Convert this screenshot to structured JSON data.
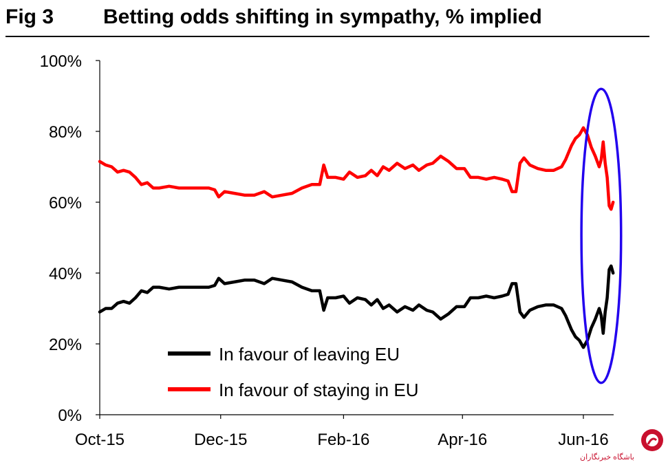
{
  "header": {
    "fig_label": "Fig 3",
    "title": "Betting odds shifting in sympathy, % implied"
  },
  "watermark": {
    "text": "باشگاه خبرنگاران",
    "logo_icon": "news-agency-logo-icon",
    "color": "#c8102e"
  },
  "chart_data": {
    "type": "line",
    "title": "Betting odds shifting in sympathy, % implied",
    "xlabel": "",
    "ylabel": "",
    "x_ticks": [
      "Oct-15",
      "Dec-15",
      "Feb-16",
      "Apr-16",
      "Jun-16"
    ],
    "x_tick_dates": [
      "2015-10-01",
      "2015-12-01",
      "2016-02-01",
      "2016-04-01",
      "2016-06-01"
    ],
    "xlim": [
      "2015-10-01",
      "2016-06-16"
    ],
    "ylim": [
      0,
      100
    ],
    "y_ticks": [
      "0%",
      "20%",
      "40%",
      "60%",
      "80%",
      "100%"
    ],
    "grid": false,
    "legend": "bottom-left",
    "annotation": {
      "shape": "ellipse",
      "color": "#2200ee",
      "x_range": [
        "2016-05-31",
        "2016-06-20"
      ],
      "y_range": [
        9,
        92
      ]
    },
    "series": [
      {
        "name": "In favour of leaving EU",
        "color": "#000000",
        "points": [
          [
            "2015-10-01",
            29
          ],
          [
            "2015-10-04",
            30
          ],
          [
            "2015-10-07",
            30
          ],
          [
            "2015-10-10",
            31.5
          ],
          [
            "2015-10-13",
            32
          ],
          [
            "2015-10-16",
            31.5
          ],
          [
            "2015-10-19",
            33
          ],
          [
            "2015-10-22",
            35
          ],
          [
            "2015-10-25",
            34.5
          ],
          [
            "2015-10-28",
            36
          ],
          [
            "2015-10-31",
            36
          ],
          [
            "2015-11-05",
            35.5
          ],
          [
            "2015-11-10",
            36
          ],
          [
            "2015-11-15",
            36
          ],
          [
            "2015-11-20",
            36
          ],
          [
            "2015-11-25",
            36
          ],
          [
            "2015-11-28",
            36.5
          ],
          [
            "2015-11-30",
            38.5
          ],
          [
            "2015-12-03",
            37
          ],
          [
            "2015-12-08",
            37.5
          ],
          [
            "2015-12-13",
            38
          ],
          [
            "2015-12-18",
            38
          ],
          [
            "2015-12-23",
            37
          ],
          [
            "2015-12-27",
            38.5
          ],
          [
            "2016-01-01",
            38
          ],
          [
            "2016-01-06",
            37.5
          ],
          [
            "2016-01-11",
            36
          ],
          [
            "2016-01-16",
            35
          ],
          [
            "2016-01-20",
            35
          ],
          [
            "2016-01-22",
            29.5
          ],
          [
            "2016-01-24",
            33
          ],
          [
            "2016-01-28",
            33
          ],
          [
            "2016-02-01",
            33.5
          ],
          [
            "2016-02-04",
            31.5
          ],
          [
            "2016-02-08",
            33
          ],
          [
            "2016-02-12",
            32.5
          ],
          [
            "2016-02-15",
            31
          ],
          [
            "2016-02-18",
            32.5
          ],
          [
            "2016-02-21",
            30
          ],
          [
            "2016-02-24",
            31
          ],
          [
            "2016-02-28",
            29
          ],
          [
            "2016-03-03",
            30.5
          ],
          [
            "2016-03-07",
            29.5
          ],
          [
            "2016-03-10",
            31
          ],
          [
            "2016-03-14",
            29.5
          ],
          [
            "2016-03-17",
            29
          ],
          [
            "2016-03-21",
            27
          ],
          [
            "2016-03-25",
            28.5
          ],
          [
            "2016-03-29",
            30.5
          ],
          [
            "2016-04-02",
            30.5
          ],
          [
            "2016-04-05",
            33
          ],
          [
            "2016-04-09",
            33
          ],
          [
            "2016-04-13",
            33.5
          ],
          [
            "2016-04-17",
            33
          ],
          [
            "2016-04-21",
            33.5
          ],
          [
            "2016-04-24",
            34
          ],
          [
            "2016-04-26",
            37
          ],
          [
            "2016-04-28",
            37
          ],
          [
            "2016-04-30",
            29
          ],
          [
            "2016-05-02",
            27.5
          ],
          [
            "2016-05-05",
            29.5
          ],
          [
            "2016-05-09",
            30.5
          ],
          [
            "2016-05-13",
            31
          ],
          [
            "2016-05-17",
            31
          ],
          [
            "2016-05-21",
            30
          ],
          [
            "2016-05-23",
            28
          ],
          [
            "2016-05-26",
            24
          ],
          [
            "2016-05-28",
            22
          ],
          [
            "2016-05-30",
            21
          ],
          [
            "2016-06-01",
            19
          ],
          [
            "2016-06-03",
            21
          ],
          [
            "2016-06-05",
            24.5
          ],
          [
            "2016-06-07",
            27
          ],
          [
            "2016-06-09",
            30
          ],
          [
            "2016-06-10",
            28
          ],
          [
            "2016-06-11",
            23
          ],
          [
            "2016-06-12",
            29
          ],
          [
            "2016-06-13",
            33
          ],
          [
            "2016-06-14",
            41
          ],
          [
            "2016-06-15",
            42
          ],
          [
            "2016-06-16",
            40
          ]
        ]
      },
      {
        "name": "In favour of staying in EU",
        "color": "#ff0000",
        "points": [
          [
            "2015-10-01",
            71.5
          ],
          [
            "2015-10-04",
            70.5
          ],
          [
            "2015-10-07",
            70
          ],
          [
            "2015-10-10",
            68.5
          ],
          [
            "2015-10-13",
            69
          ],
          [
            "2015-10-16",
            68.5
          ],
          [
            "2015-10-19",
            67
          ],
          [
            "2015-10-22",
            65
          ],
          [
            "2015-10-25",
            65.5
          ],
          [
            "2015-10-28",
            64
          ],
          [
            "2015-10-31",
            64
          ],
          [
            "2015-11-05",
            64.5
          ],
          [
            "2015-11-10",
            64
          ],
          [
            "2015-11-15",
            64
          ],
          [
            "2015-11-20",
            64
          ],
          [
            "2015-11-25",
            64
          ],
          [
            "2015-11-28",
            63.5
          ],
          [
            "2015-11-30",
            61.5
          ],
          [
            "2015-12-03",
            63
          ],
          [
            "2015-12-08",
            62.5
          ],
          [
            "2015-12-13",
            62
          ],
          [
            "2015-12-18",
            62
          ],
          [
            "2015-12-23",
            63
          ],
          [
            "2015-12-27",
            61.5
          ],
          [
            "2016-01-01",
            62
          ],
          [
            "2016-01-06",
            62.5
          ],
          [
            "2016-01-11",
            64
          ],
          [
            "2016-01-16",
            65
          ],
          [
            "2016-01-20",
            65
          ],
          [
            "2016-01-22",
            70.5
          ],
          [
            "2016-01-24",
            67
          ],
          [
            "2016-01-28",
            67
          ],
          [
            "2016-02-01",
            66.5
          ],
          [
            "2016-02-04",
            68.5
          ],
          [
            "2016-02-08",
            67
          ],
          [
            "2016-02-12",
            67.5
          ],
          [
            "2016-02-15",
            69
          ],
          [
            "2016-02-18",
            67.5
          ],
          [
            "2016-02-21",
            70
          ],
          [
            "2016-02-24",
            69
          ],
          [
            "2016-02-28",
            71
          ],
          [
            "2016-03-03",
            69.5
          ],
          [
            "2016-03-07",
            70.5
          ],
          [
            "2016-03-10",
            69
          ],
          [
            "2016-03-14",
            70.5
          ],
          [
            "2016-03-17",
            71
          ],
          [
            "2016-03-21",
            73
          ],
          [
            "2016-03-25",
            71.5
          ],
          [
            "2016-03-29",
            69.5
          ],
          [
            "2016-04-02",
            69.5
          ],
          [
            "2016-04-05",
            67
          ],
          [
            "2016-04-09",
            67
          ],
          [
            "2016-04-13",
            66.5
          ],
          [
            "2016-04-17",
            67
          ],
          [
            "2016-04-21",
            66.5
          ],
          [
            "2016-04-24",
            66
          ],
          [
            "2016-04-26",
            63
          ],
          [
            "2016-04-28",
            63
          ],
          [
            "2016-04-30",
            71
          ],
          [
            "2016-05-02",
            72.5
          ],
          [
            "2016-05-05",
            70.5
          ],
          [
            "2016-05-09",
            69.5
          ],
          [
            "2016-05-13",
            69
          ],
          [
            "2016-05-17",
            69
          ],
          [
            "2016-05-21",
            70
          ],
          [
            "2016-05-23",
            72
          ],
          [
            "2016-05-26",
            76
          ],
          [
            "2016-05-28",
            78
          ],
          [
            "2016-05-30",
            79
          ],
          [
            "2016-06-01",
            81
          ],
          [
            "2016-06-03",
            79
          ],
          [
            "2016-06-05",
            75.5
          ],
          [
            "2016-06-07",
            73
          ],
          [
            "2016-06-09",
            70
          ],
          [
            "2016-06-10",
            72
          ],
          [
            "2016-06-11",
            77
          ],
          [
            "2016-06-12",
            71
          ],
          [
            "2016-06-13",
            67
          ],
          [
            "2016-06-14",
            59
          ],
          [
            "2016-06-15",
            58
          ],
          [
            "2016-06-16",
            60
          ]
        ]
      }
    ]
  }
}
